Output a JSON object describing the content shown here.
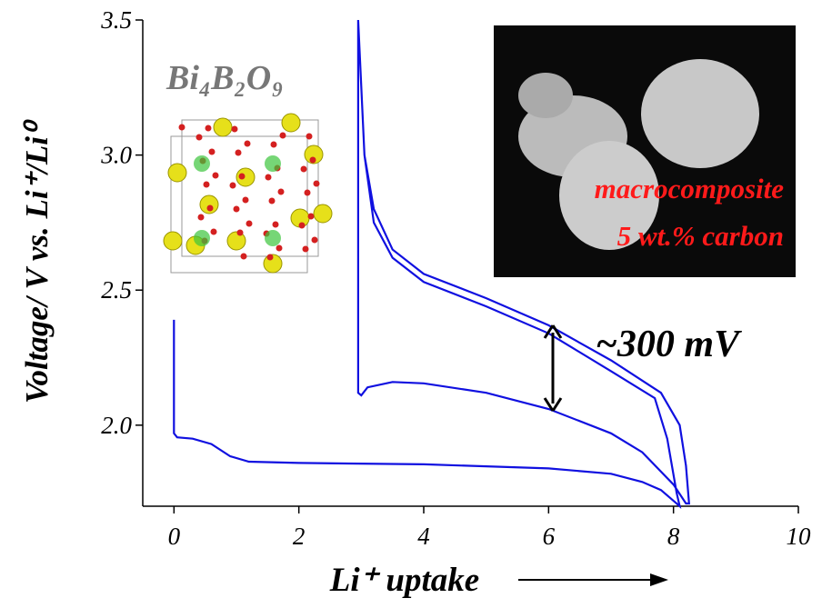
{
  "chart_data": {
    "type": "line",
    "xlabel": "Li⁺ uptake",
    "ylabel": "Voltage/ V vs. Li⁺/Li⁰",
    "annotations": [
      "Bi₄B₂O₉",
      "~300 mV",
      "macrocomposite",
      "5 wt.% carbon"
    ],
    "xlim": [
      -0.5,
      10
    ],
    "ylim": [
      1.7,
      3.5
    ],
    "xticks": [
      0,
      2,
      4,
      6,
      8,
      10
    ],
    "yticks": [
      {
        "value": 2.0,
        "label": "2.0"
      },
      {
        "value": 2.5,
        "label": "2.5"
      },
      {
        "value": 3.0,
        "label": "3.0"
      },
      {
        "value": 3.5,
        "label": "3.5"
      }
    ],
    "series": [
      {
        "color": "#1010e0",
        "x": [
          0,
          0,
          0.05,
          0.3,
          0.6,
          0.9,
          1.2,
          2,
          4,
          6,
          7,
          7.5,
          7.8,
          8.0,
          8.1,
          8.05,
          7.9,
          7.7,
          7,
          6,
          5,
          4,
          3.5,
          3.2,
          3.05,
          2.95,
          2.95,
          2.95,
          3.0,
          3.1,
          3.5,
          4,
          5,
          6,
          7,
          7.5,
          8.0,
          8.2,
          8.25,
          8.2,
          8.1,
          7.8,
          7,
          6,
          5,
          4,
          3.5,
          3.2,
          3.05
        ],
        "values": [
          2.39,
          1.97,
          1.955,
          1.95,
          1.93,
          1.885,
          1.865,
          1.86,
          1.855,
          1.84,
          1.82,
          1.79,
          1.76,
          1.72,
          1.7,
          1.75,
          1.95,
          2.1,
          2.2,
          2.34,
          2.44,
          2.53,
          2.62,
          2.75,
          3.0,
          3.5,
          2.5,
          2.12,
          2.11,
          2.14,
          2.16,
          2.155,
          2.12,
          2.06,
          1.97,
          1.9,
          1.78,
          1.71,
          1.71,
          1.85,
          2.0,
          2.12,
          2.24,
          2.37,
          2.47,
          2.56,
          2.65,
          2.8,
          3.0
        ]
      }
    ]
  }
}
